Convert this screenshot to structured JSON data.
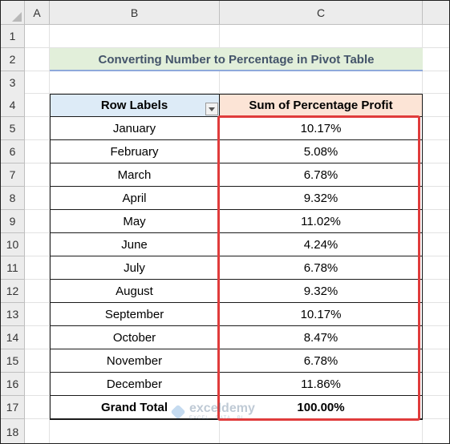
{
  "columns": [
    "A",
    "B",
    "C"
  ],
  "rows": [
    "1",
    "2",
    "3",
    "4",
    "5",
    "6",
    "7",
    "8",
    "9",
    "10",
    "11",
    "12",
    "13",
    "14",
    "15",
    "16",
    "17",
    "18"
  ],
  "title": "Converting Number to Percentage in Pivot Table",
  "pivot": {
    "header_labels": "Row Labels",
    "header_values": "Sum of Percentage Profit",
    "rows": [
      {
        "label": "January",
        "value": "10.17%"
      },
      {
        "label": "February",
        "value": "5.08%"
      },
      {
        "label": "March",
        "value": "6.78%"
      },
      {
        "label": "April",
        "value": "9.32%"
      },
      {
        "label": "May",
        "value": "11.02%"
      },
      {
        "label": "June",
        "value": "4.24%"
      },
      {
        "label": "July",
        "value": "6.78%"
      },
      {
        "label": "August",
        "value": "9.32%"
      },
      {
        "label": "September",
        "value": "10.17%"
      },
      {
        "label": "October",
        "value": "8.47%"
      },
      {
        "label": "November",
        "value": "6.78%"
      },
      {
        "label": "December",
        "value": "11.86%"
      }
    ],
    "total_label": "Grand Total",
    "total_value": "100.00%"
  },
  "watermark": {
    "name": "exceldemy",
    "tagline": "EXCEL · DATA · BI"
  },
  "colors": {
    "title_bg": "#e2efda",
    "title_text": "#44546a",
    "header_b": "#ddebf7",
    "header_c": "#fce4d6",
    "highlight": "#e03c3c"
  },
  "icons": {
    "filter": "dropdown-filter-icon",
    "select_all": "select-all-triangle-icon"
  }
}
